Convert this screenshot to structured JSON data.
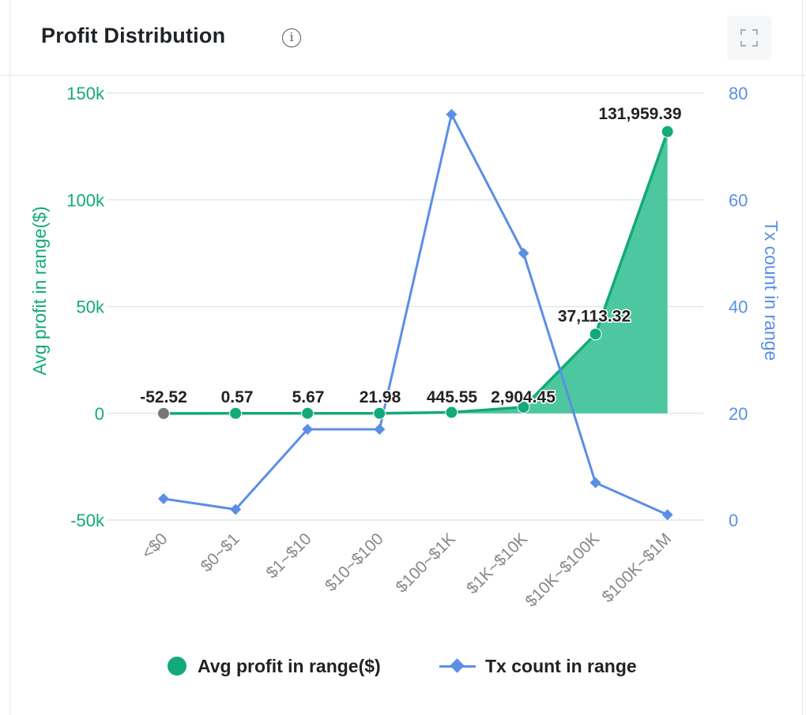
{
  "header": {
    "title": "Profit Distribution",
    "info_glyph": "i"
  },
  "icons": {
    "info": "info-icon",
    "expand": "expand-icon"
  },
  "colors": {
    "profit": "#14a97a",
    "profit_area": "#4cc79f",
    "tx": "#5b8ee6",
    "negative_point": "#777777",
    "grid": "#dfe7ea"
  },
  "chart_data": {
    "type": "line",
    "categories": [
      "<$0",
      "$0~$1",
      "$1~$10",
      "$10~$100",
      "$100~$1K",
      "$1K~$10K",
      "$10K~$100K",
      "$100K~$1M"
    ],
    "series": [
      {
        "name": "Avg profit in range($)",
        "axis": "left",
        "style": "line-with-area",
        "values": [
          -52.52,
          0.57,
          5.67,
          21.98,
          445.55,
          2904.45,
          37113.32,
          131959.39
        ],
        "labels": [
          "-52.52",
          "0.57",
          "5.67",
          "21.98",
          "445.55",
          "2,904.45",
          "37,113.32",
          "131,959.39"
        ]
      },
      {
        "name": "Tx count in range",
        "axis": "right",
        "style": "line-diamond",
        "values": [
          4,
          2,
          17,
          17,
          76,
          50,
          7,
          1
        ]
      }
    ],
    "y_left": {
      "label": "Avg profit in range($)",
      "ylim": [
        -50000,
        150000
      ],
      "ticks": [
        -50000,
        0,
        50000,
        100000,
        150000
      ],
      "tick_labels": [
        "-50k",
        "0",
        "50k",
        "100k",
        "150k"
      ]
    },
    "y_right": {
      "label": "Tx count in range",
      "ylim": [
        0,
        80
      ],
      "ticks": [
        0,
        20,
        40,
        60,
        80
      ],
      "tick_labels": [
        "0",
        "20",
        "40",
        "60",
        "80"
      ]
    },
    "grid": true,
    "legend": "bottom-center"
  }
}
